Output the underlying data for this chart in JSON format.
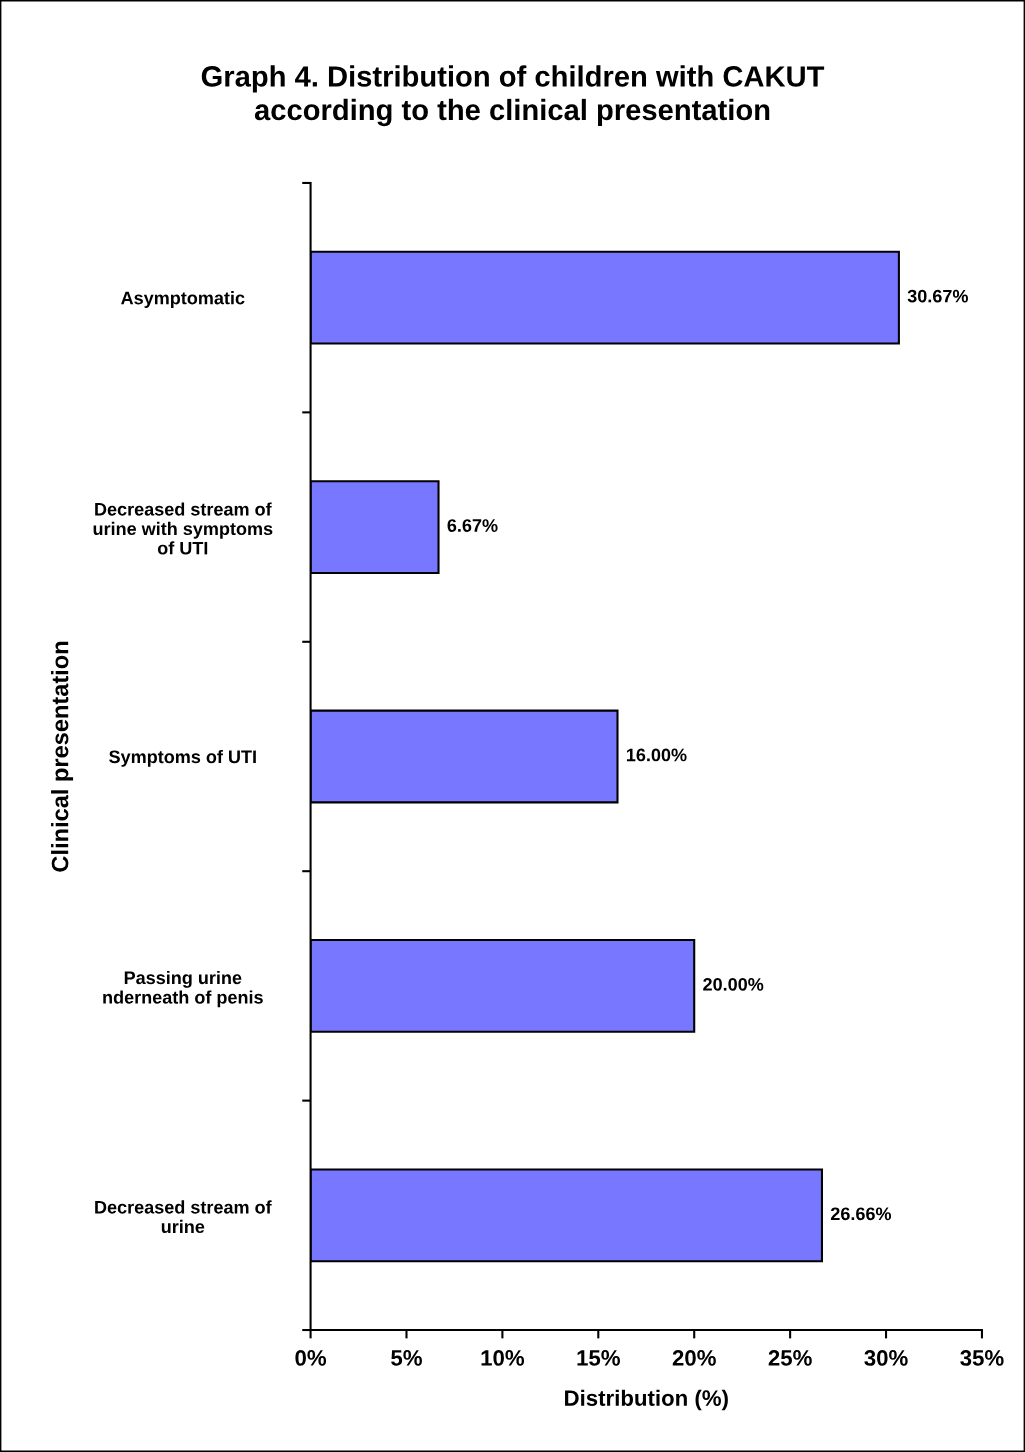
{
  "chart_data": {
    "type": "bar",
    "orientation": "horizontal",
    "title": "Graph 4. Distribution of children with CAKUT\naccording to the clinical presentation",
    "xlabel": "Distribution (%)",
    "ylabel": "Clinical presentation",
    "categories": [
      "Asymptomatic",
      "Decreased stream of\nurine with symptoms\nof UTI",
      "Symptoms of UTI",
      "Passing urine\nnderneath of penis",
      "Decreased stream of\nurine"
    ],
    "values": [
      30.67,
      6.67,
      16.0,
      20.0,
      26.66
    ],
    "value_labels": [
      "30.67%",
      "6.67%",
      "16.00%",
      "20.00%",
      "26.66%"
    ],
    "color": "#7777ff",
    "xlim": [
      0,
      35
    ],
    "xticks": [
      {
        "value": 0,
        "label": "0%"
      },
      {
        "value": 5,
        "label": "5%"
      },
      {
        "value": 10,
        "label": "10%"
      },
      {
        "value": 15,
        "label": "15%"
      },
      {
        "value": 20,
        "label": "20%"
      },
      {
        "value": 25,
        "label": "25%"
      },
      {
        "value": 30,
        "label": "30%"
      },
      {
        "value": 35,
        "label": "35%"
      }
    ],
    "grid": false,
    "legend": false
  }
}
